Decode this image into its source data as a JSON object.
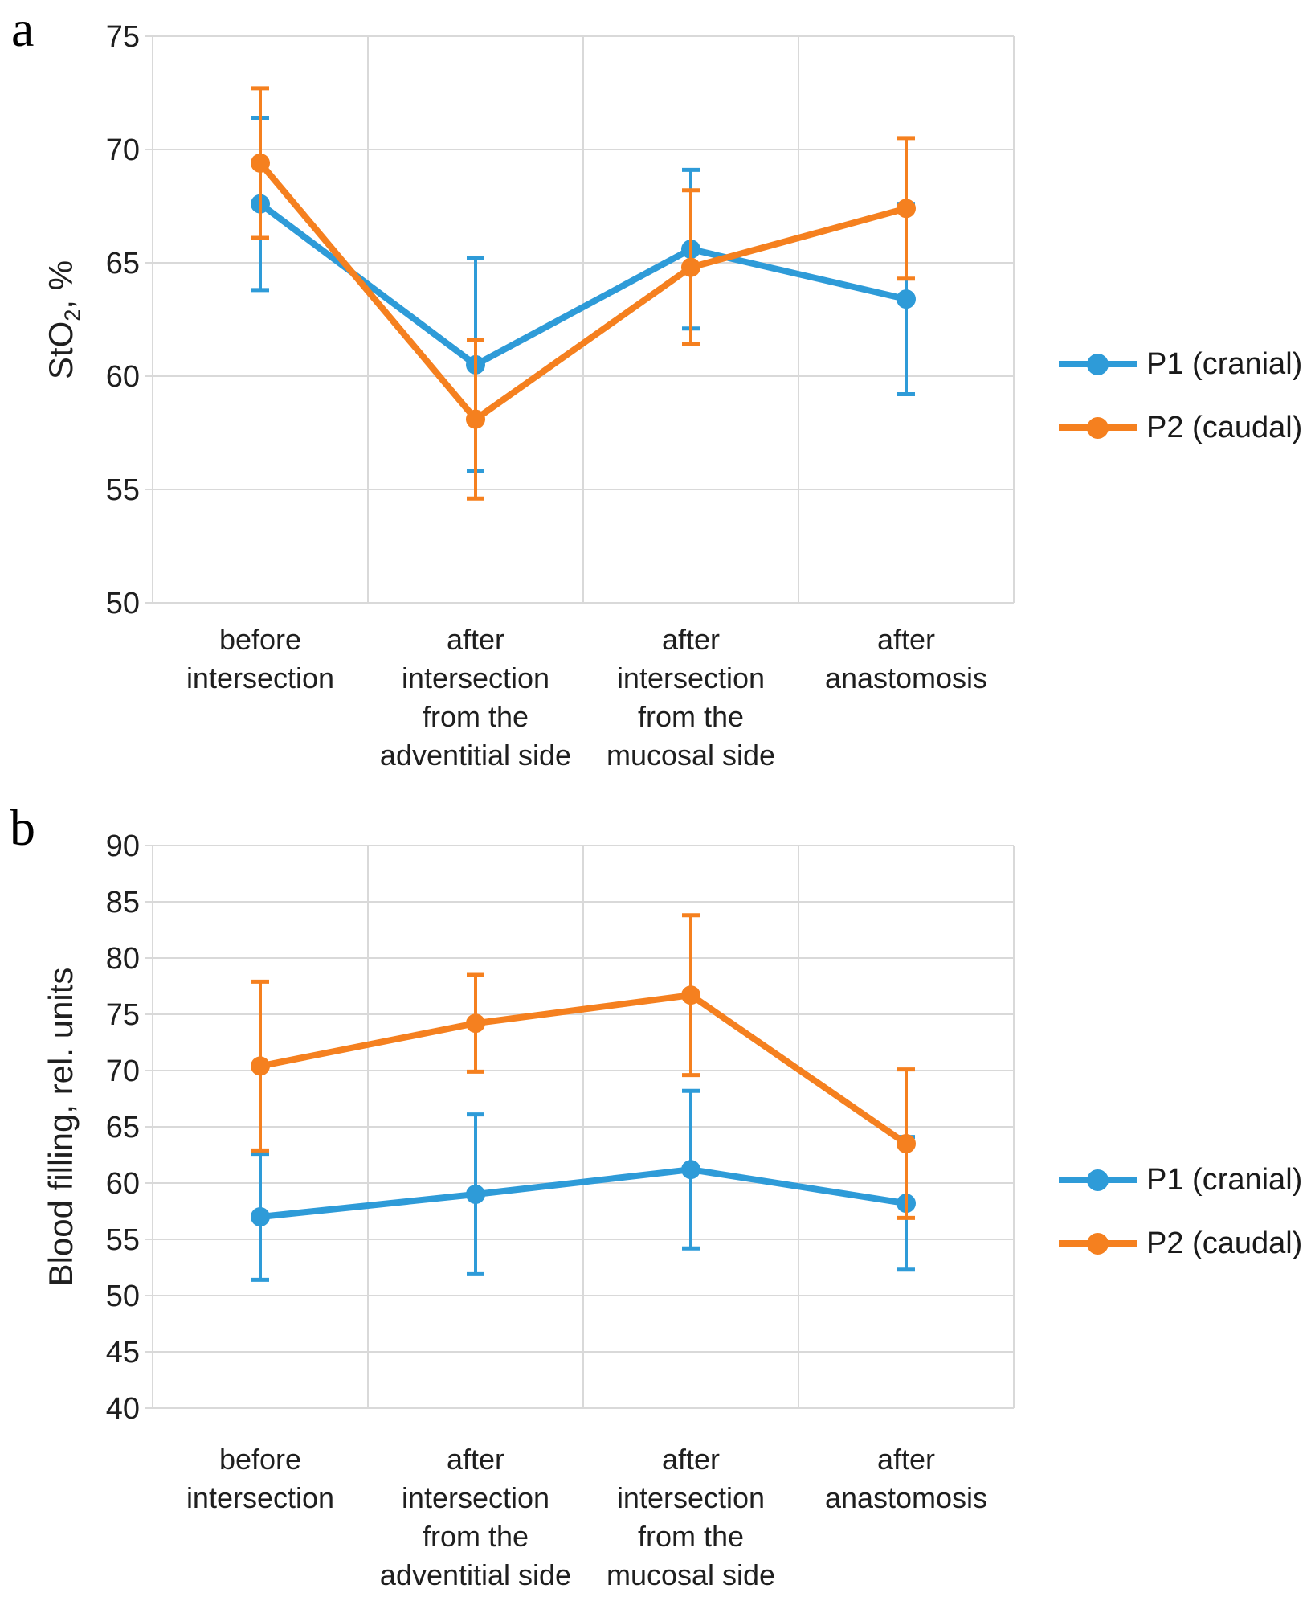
{
  "colors": {
    "p1": "#2E9BD8",
    "p2": "#F5801F",
    "grid": "#D9D9D9",
    "axis_border": "#CCCCCC",
    "text": "#1f1f1f"
  },
  "chart_data": [
    {
      "panel_label": "a",
      "type": "line",
      "ylabel": "StO2, %",
      "ylabel_prefix": "StO",
      "ylabel_sub": "2",
      "ylabel_suffix": ", %",
      "ylim": [
        50,
        75
      ],
      "ytick_step": 5,
      "y_ticks": [
        75,
        70,
        65,
        60,
        55,
        50
      ],
      "grid": true,
      "legend_position": "right",
      "error_bars": true,
      "categories": [
        "before intersection",
        "after intersection from the adventitial side",
        "after intersection from the mucosal side",
        "after anastomosis"
      ],
      "category_lines": [
        [
          "before",
          "intersection"
        ],
        [
          "after",
          "intersection",
          "from the",
          "adventitial side"
        ],
        [
          "after",
          "intersection",
          "from the",
          "mucosal side"
        ],
        [
          "after",
          "anastomosis"
        ]
      ],
      "series": [
        {
          "name": "P1 (cranial)",
          "color_key": "p1",
          "values": [
            67.6,
            60.5,
            65.6,
            63.4
          ],
          "errors": [
            3.8,
            4.7,
            3.5,
            4.2
          ]
        },
        {
          "name": "P2 (caudal)",
          "color_key": "p2",
          "values": [
            69.4,
            58.1,
            64.8,
            67.4
          ],
          "errors": [
            3.3,
            3.5,
            3.4,
            3.1
          ]
        }
      ]
    },
    {
      "panel_label": "b",
      "type": "line",
      "ylabel": "Blood filling, rel. units",
      "ylabel_prefix": "Blood filling, rel. units",
      "ylabel_sub": "",
      "ylabel_suffix": "",
      "ylim": [
        40,
        90
      ],
      "ytick_step": 5,
      "y_ticks": [
        90,
        85,
        80,
        75,
        70,
        65,
        60,
        55,
        50,
        45,
        40
      ],
      "grid": true,
      "legend_position": "right",
      "error_bars": true,
      "categories": [
        "before intersection",
        "after intersection from the adventitial side",
        "after intersection from the mucosal side",
        "after anastomosis"
      ],
      "category_lines": [
        [
          "before",
          "intersection"
        ],
        [
          "after",
          "intersection",
          "from the",
          "adventitial side"
        ],
        [
          "after",
          "intersection",
          "from the",
          "mucosal side"
        ],
        [
          "after",
          "anastomosis"
        ]
      ],
      "series": [
        {
          "name": "P1 (cranial)",
          "color_key": "p1",
          "values": [
            57.0,
            59.0,
            61.2,
            58.2
          ],
          "errors": [
            5.6,
            7.1,
            7.0,
            5.9
          ]
        },
        {
          "name": "P2 (caudal)",
          "color_key": "p2",
          "values": [
            70.4,
            74.2,
            76.7,
            63.5
          ],
          "errors": [
            7.5,
            4.3,
            7.1,
            6.6
          ]
        }
      ]
    }
  ]
}
